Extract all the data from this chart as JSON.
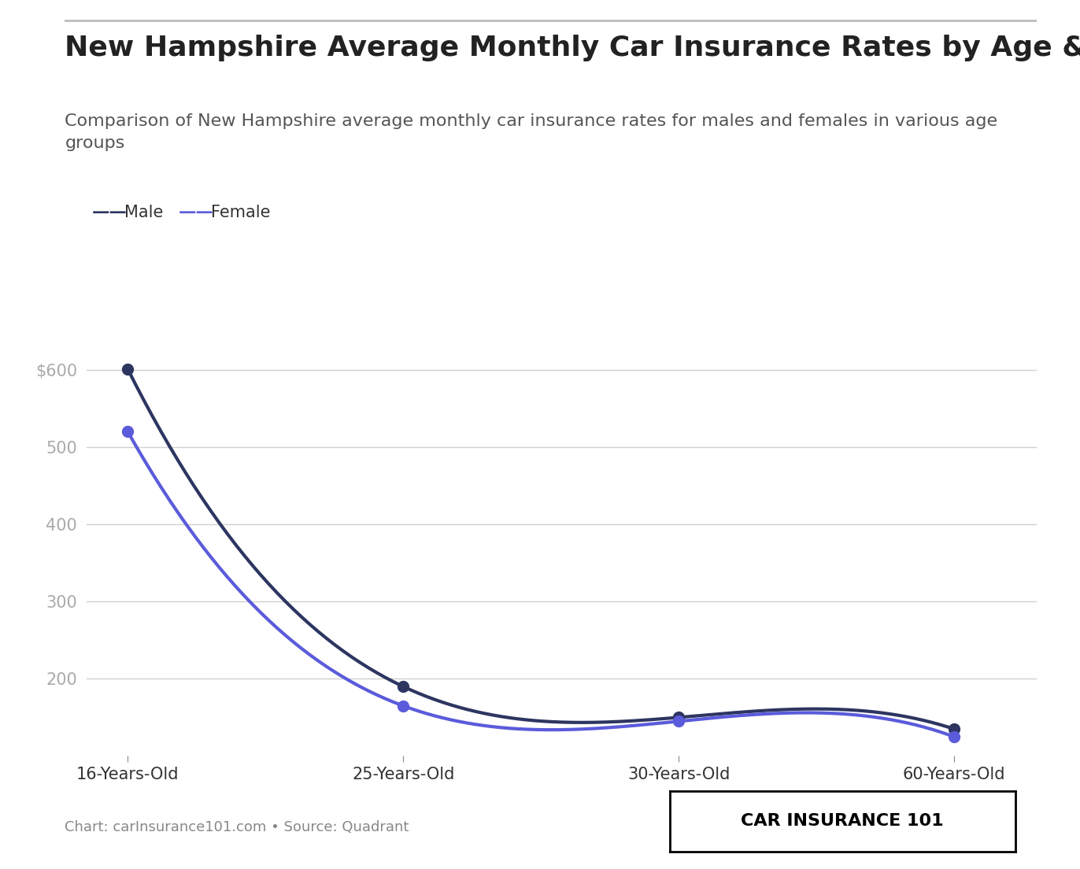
{
  "title": "New Hampshire Average Monthly Car Insurance Rates by Age & Gender",
  "subtitle": "Comparison of New Hampshire average monthly car insurance rates for males and females in various age\ngroups",
  "categories": [
    "16-Years-Old",
    "25-Years-Old",
    "30-Years-Old",
    "60-Years-Old"
  ],
  "male_values": [
    601,
    190,
    150,
    135
  ],
  "female_values": [
    520,
    165,
    145,
    125
  ],
  "male_color": "#2d3561",
  "female_color": "#5b5bdb",
  "male_label": "Male",
  "female_label": "Female",
  "yticks": [
    200,
    300,
    400,
    500,
    600
  ],
  "ytick_labels": [
    "200",
    "300",
    "400",
    "500",
    "$600"
  ],
  "ylim": [
    100,
    640
  ],
  "grid_color": "#d0d0d0",
  "background_color": "#ffffff",
  "text_color": "#333333",
  "subtitle_color": "#555555",
  "footer_text": "Chart: carInsurance101.com • Source: Quadrant",
  "logo_text": "CAR INSURANCE 101",
  "top_border_color": "#c0c0c0",
  "title_fontsize": 26,
  "subtitle_fontsize": 16,
  "axis_tick_fontsize": 15,
  "legend_fontsize": 15,
  "footer_fontsize": 13,
  "logo_fontsize": 16
}
